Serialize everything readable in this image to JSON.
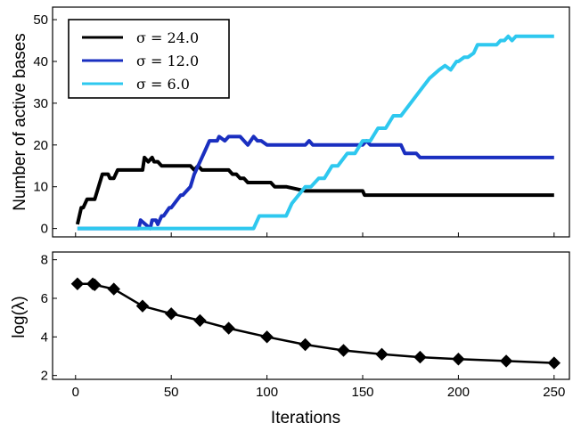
{
  "chart_data": [
    {
      "type": "line",
      "ylabel": "Number of active bases",
      "ylim": [
        -2,
        53
      ],
      "xlim": [
        -12,
        258
      ],
      "y_ticks": [
        0,
        10,
        20,
        30,
        40,
        50
      ],
      "grid": false,
      "legend_position": "top-left",
      "series": [
        {
          "name": "σ  = 24.0",
          "color": "#000000",
          "x": [
            1,
            3,
            4,
            6,
            7,
            10,
            12,
            14,
            15,
            17,
            18,
            20,
            22,
            24,
            25,
            35,
            36,
            38,
            40,
            41,
            43,
            45,
            60,
            62,
            64,
            66,
            68,
            70,
            80,
            82,
            84,
            86,
            88,
            90,
            100,
            102,
            104,
            106,
            108,
            110,
            120,
            150,
            151,
            250
          ],
          "y": [
            1,
            5,
            5,
            7,
            7,
            7,
            10,
            13,
            13,
            13,
            12,
            12,
            14,
            14,
            14,
            14,
            17,
            16,
            17,
            16,
            16,
            15,
            15,
            14,
            15,
            14,
            14,
            14,
            14,
            13,
            13,
            12,
            12,
            11,
            11,
            11,
            10,
            10,
            10,
            10,
            9,
            9,
            8,
            8
          ]
        },
        {
          "name": "σ  = 12.0",
          "color": "#1a2fc0",
          "x": [
            1,
            33,
            34,
            39,
            40,
            42,
            43,
            45,
            46,
            49,
            50,
            55,
            56,
            58,
            60,
            62,
            64,
            66,
            68,
            70,
            72,
            74,
            75,
            78,
            80,
            82,
            84,
            86,
            90,
            93,
            95,
            97,
            100,
            120,
            122,
            124,
            150,
            152,
            154,
            156,
            162,
            164,
            168,
            170,
            172,
            176,
            178,
            180,
            182,
            250
          ],
          "y": [
            0,
            0,
            2,
            0,
            2,
            2,
            1,
            3,
            3,
            5,
            5,
            8,
            8,
            9,
            10,
            13,
            15,
            17,
            19,
            21,
            21,
            21,
            22,
            21,
            22,
            22,
            22,
            22,
            20,
            22,
            21,
            21,
            20,
            20,
            21,
            20,
            20,
            21,
            20,
            20,
            20,
            20,
            20,
            20,
            18,
            18,
            18,
            17,
            17,
            17
          ]
        },
        {
          "name": "σ  = 6.0",
          "color": "#2ec8ef",
          "x": [
            1,
            93,
            96,
            101,
            104,
            110,
            113,
            120,
            123,
            127,
            130,
            134,
            137,
            142,
            146,
            150,
            154,
            158,
            162,
            166,
            170,
            175,
            180,
            185,
            190,
            193,
            196,
            199,
            200,
            203,
            205,
            208,
            210,
            213,
            216,
            218,
            220,
            222,
            224,
            226,
            228,
            230,
            235,
            250
          ],
          "y": [
            0,
            0,
            3,
            3,
            3,
            3,
            6,
            10,
            10,
            12,
            12,
            15,
            15,
            18,
            18,
            21,
            21,
            24,
            24,
            27,
            27,
            30,
            33,
            36,
            38,
            39,
            38,
            40,
            40,
            41,
            41,
            42,
            44,
            44,
            44,
            44,
            44,
            45,
            45,
            46,
            45,
            46,
            46,
            46
          ]
        }
      ]
    },
    {
      "type": "line",
      "xlabel": "Iterations",
      "ylabel": "log(λ)",
      "xlim": [
        -12,
        258
      ],
      "ylim": [
        1.8,
        8.4
      ],
      "x_ticks": [
        0,
        50,
        100,
        150,
        200,
        250
      ],
      "y_ticks": [
        2,
        4,
        6,
        8
      ],
      "grid": false,
      "marker": "diamond",
      "series": [
        {
          "color": "#000000",
          "x": [
            1,
            9,
            10,
            20,
            35,
            50,
            65,
            80,
            100,
            120,
            140,
            160,
            180,
            200,
            225,
            250
          ],
          "y": [
            6.75,
            6.75,
            6.7,
            6.48,
            5.6,
            5.2,
            4.85,
            4.45,
            4.0,
            3.6,
            3.3,
            3.1,
            2.95,
            2.85,
            2.75,
            2.65
          ]
        }
      ]
    }
  ]
}
